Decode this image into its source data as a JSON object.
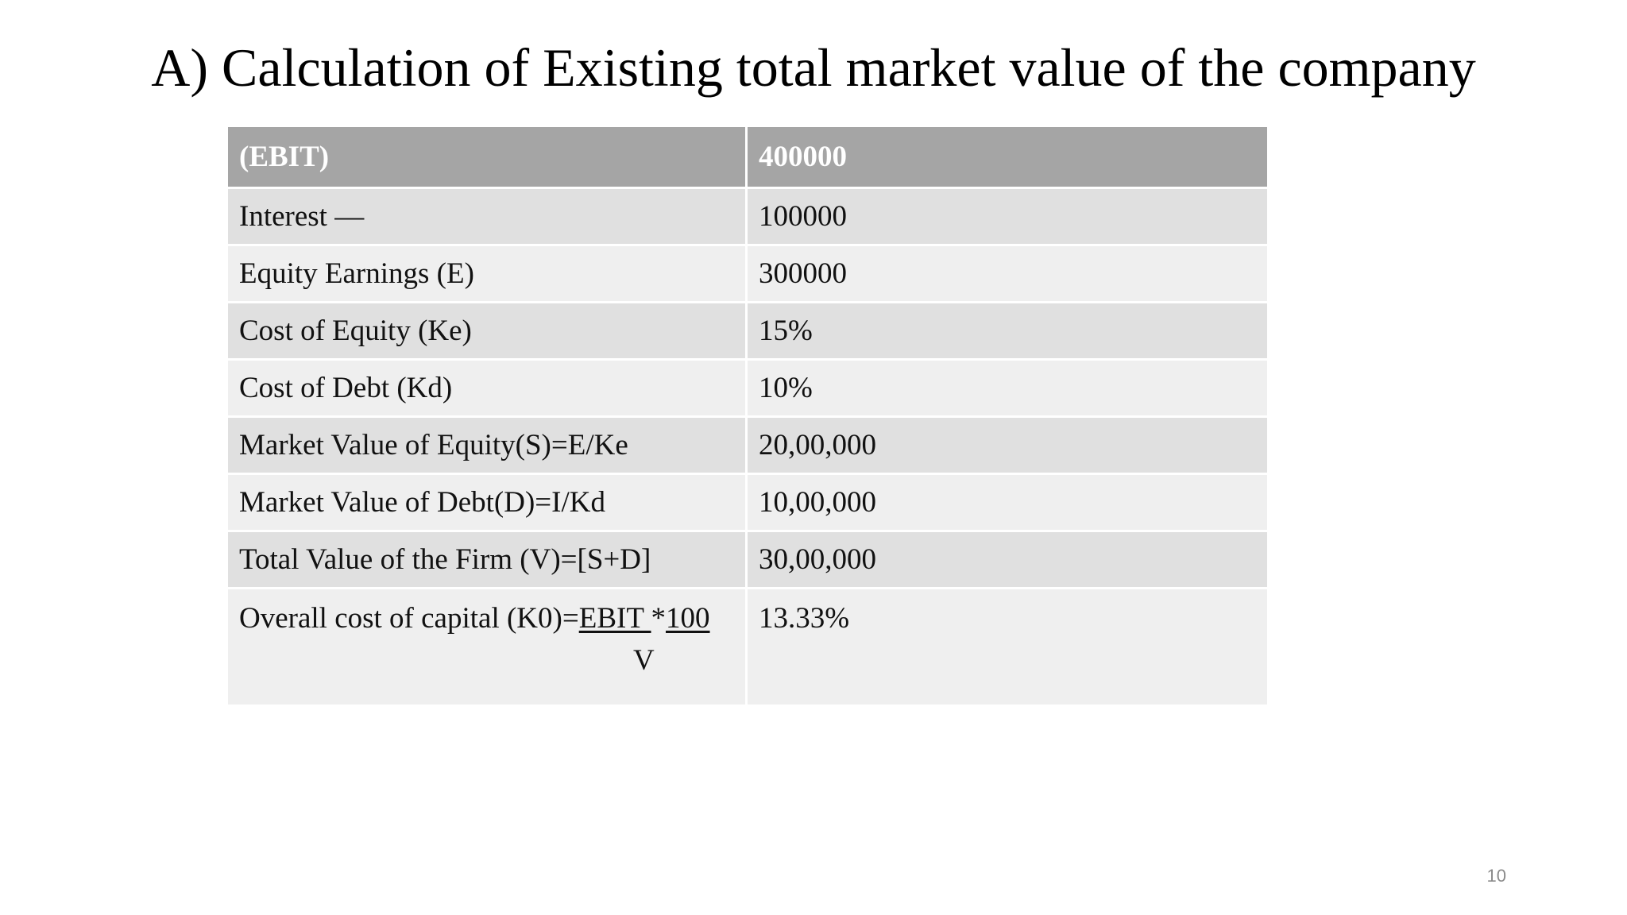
{
  "title": "A) Calculation of Existing total market value of the company",
  "table": {
    "header": {
      "label": "(EBIT)",
      "value": "400000"
    },
    "rows": [
      {
        "label": "Interest —",
        "value": "100000"
      },
      {
        "label": "Equity Earnings (E)",
        "value": "300000"
      },
      {
        "label": "Cost of Equity (Ke)",
        "value": "15%"
      },
      {
        "label": "Cost of Debt (Kd)",
        "value": "10%"
      },
      {
        "label": "Market Value of Equity(S)=E/Ke",
        "value": "20,00,000"
      },
      {
        "label": "Market Value of Debt(D)=I/Kd",
        "value": "10,00,000"
      },
      {
        "label": "Total Value of the Firm (V)=[S+D]",
        "value": "30,00,000"
      }
    ],
    "last_row": {
      "label_prefix": "Overall cost of capital (K0)=",
      "numerator": "EBIT ",
      "operator": "*",
      "multiplier": "100",
      "denominator": "V",
      "value": "13.33%"
    }
  },
  "page_number": "10"
}
